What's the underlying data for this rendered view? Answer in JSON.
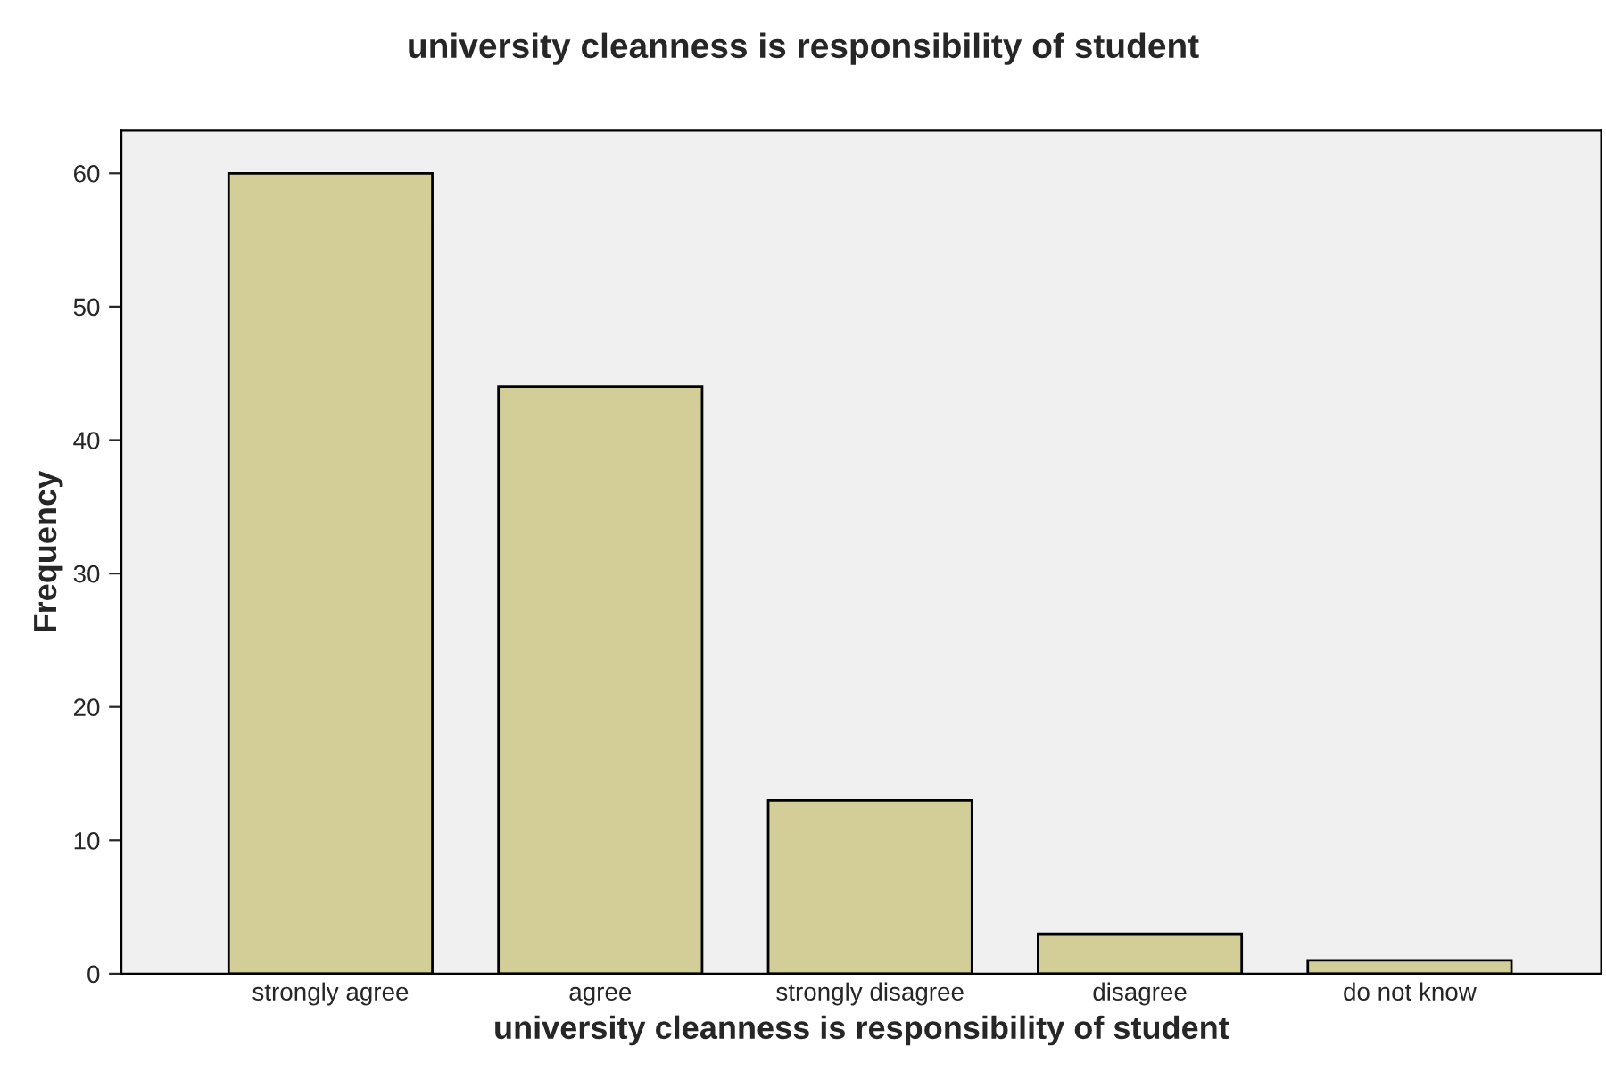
{
  "chart_data": {
    "type": "bar",
    "title": "university cleanness is responsibility of student",
    "xlabel": "university cleanness is responsibility of student",
    "ylabel": "Frequency",
    "categories": [
      "strongly agree",
      "agree",
      "strongly disagree",
      "disagree",
      "do not know"
    ],
    "values": [
      60,
      44,
      13,
      3,
      1
    ],
    "color": "#d3ce97",
    "ylim": [
      0,
      63.2
    ],
    "yticks": [
      0,
      10,
      20,
      30,
      40,
      50,
      60
    ],
    "grid": false,
    "legend": false
  }
}
